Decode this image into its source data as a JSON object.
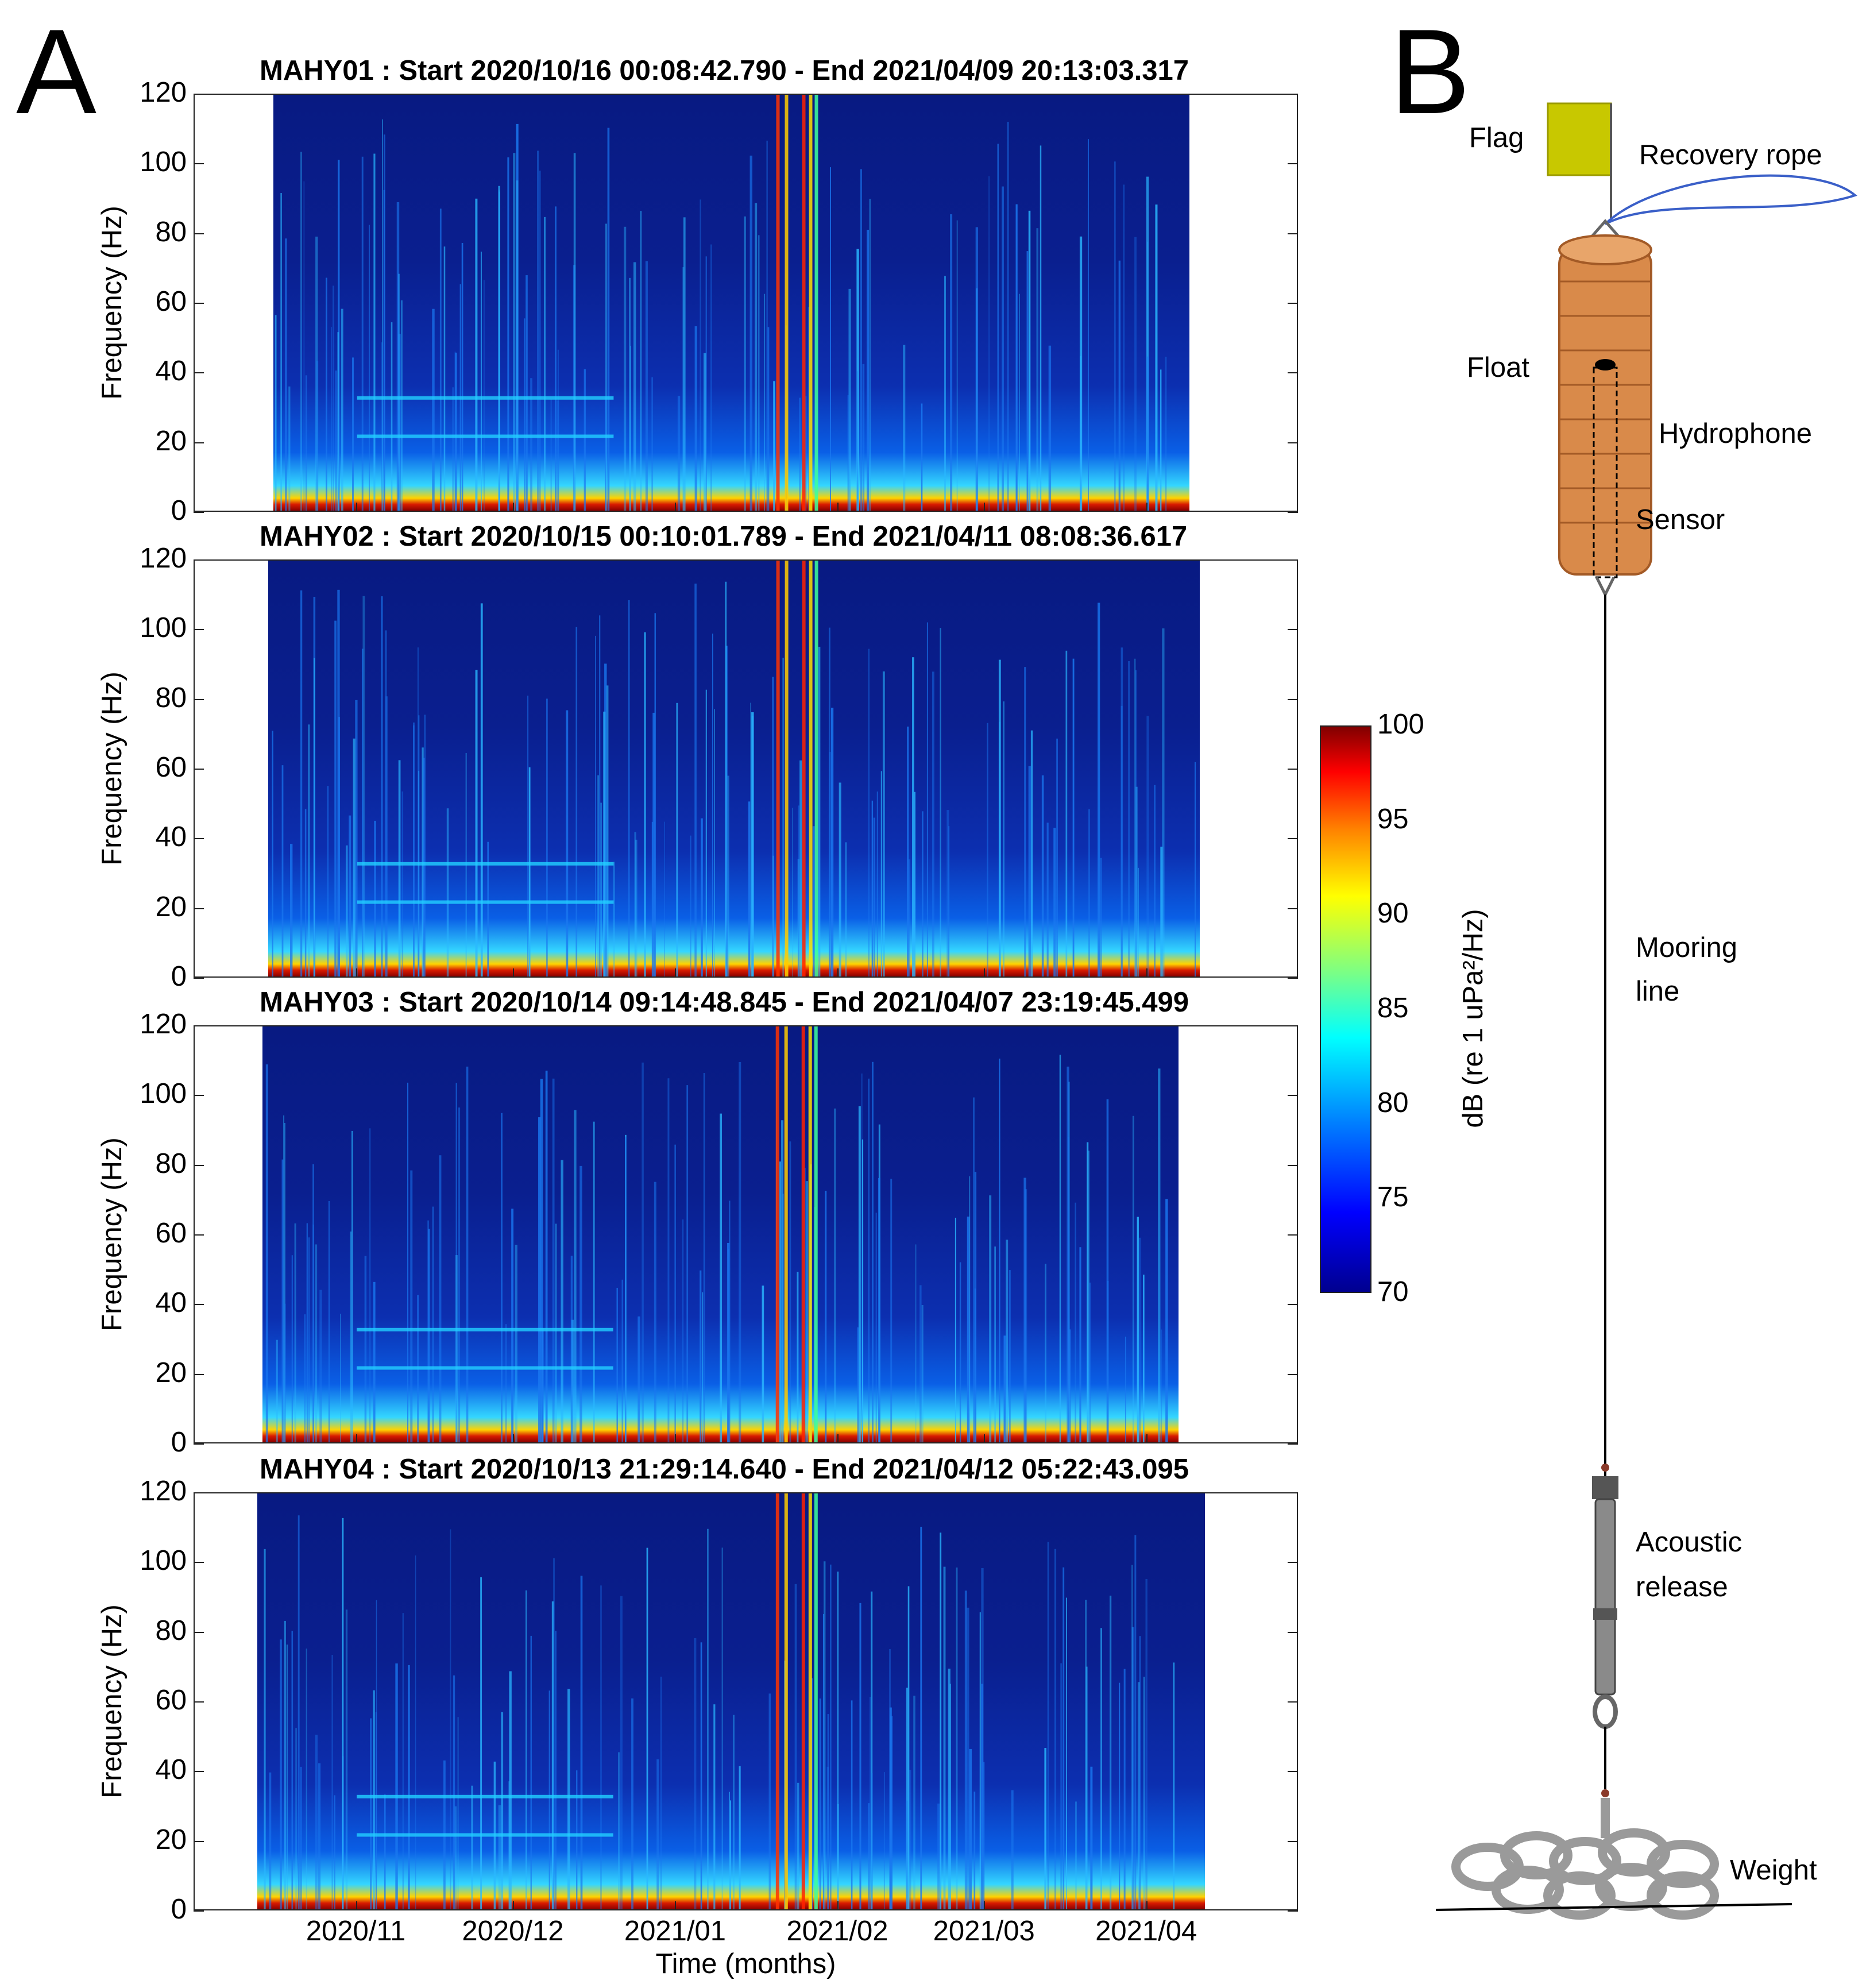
{
  "panel_a": {
    "letter": "A"
  },
  "panel_b": {
    "letter": "B",
    "labels": {
      "flag": "Flag",
      "recovery_rope": "Recovery rope",
      "float": "Float",
      "hydrophone": "Hydrophone",
      "sensor": "Sensor",
      "mooring_line_1": "Mooring",
      "mooring_line_2": "line",
      "acoustic_release_1": "Acoustic",
      "acoustic_release_2": "release",
      "weight": "Weight"
    }
  },
  "colors": {
    "flag": "#c8c800",
    "float": "#d98a4a",
    "rope": "#3a5fc8",
    "release": "#8a8a8a",
    "chain": "#9a9a9a"
  },
  "colorbar": {
    "label": "dB (re 1 uPa²/Hz)",
    "ticks": [
      "100",
      "95",
      "90",
      "85",
      "80",
      "75",
      "70"
    ],
    "min": 70,
    "max": 100
  },
  "chart_data": [
    {
      "type": "heatmap",
      "title": "MAHY01 : Start 2020/10/16 00:08:42.790 - End 2021/04/09 20:13:03.317",
      "ylabel": "Frequency (Hz)",
      "ylim": [
        0,
        120
      ],
      "yticks": [
        "120",
        "100",
        "80",
        "60",
        "40",
        "20",
        "0"
      ],
      "xlabel": "",
      "data_start": "2020/10/16",
      "data_end": "2021/04/09"
    },
    {
      "type": "heatmap",
      "title": "MAHY02 : Start 2020/10/15 00:10:01.789 - End 2021/04/11 08:08:36.617",
      "ylabel": "Frequency (Hz)",
      "ylim": [
        0,
        120
      ],
      "yticks": [
        "120",
        "100",
        "80",
        "60",
        "40",
        "20",
        "0"
      ],
      "xlabel": "",
      "data_start": "2020/10/15",
      "data_end": "2021/04/11"
    },
    {
      "type": "heatmap",
      "title": "MAHY03 : Start 2020/10/14 09:14:48.845 - End 2021/04/07 23:19:45.499",
      "ylabel": "Frequency (Hz)",
      "ylim": [
        0,
        120
      ],
      "yticks": [
        "120",
        "100",
        "80",
        "60",
        "40",
        "20",
        "0"
      ],
      "xlabel": "",
      "data_start": "2020/10/14",
      "data_end": "2021/04/07"
    },
    {
      "type": "heatmap",
      "title": "MAHY04 : Start 2020/10/13 21:29:14.640 - End 2021/04/12 05:22:43.095",
      "ylabel": "Frequency (Hz)",
      "ylim": [
        0,
        120
      ],
      "yticks": [
        "120",
        "100",
        "80",
        "60",
        "40",
        "20",
        "0"
      ],
      "xlabel": "Time (months)",
      "xticks": [
        "2020/11",
        "2020/12",
        "2021/01",
        "2021/02",
        "2021/03",
        "2021/04"
      ],
      "data_start": "2020/10/13",
      "data_end": "2021/04/12"
    }
  ]
}
